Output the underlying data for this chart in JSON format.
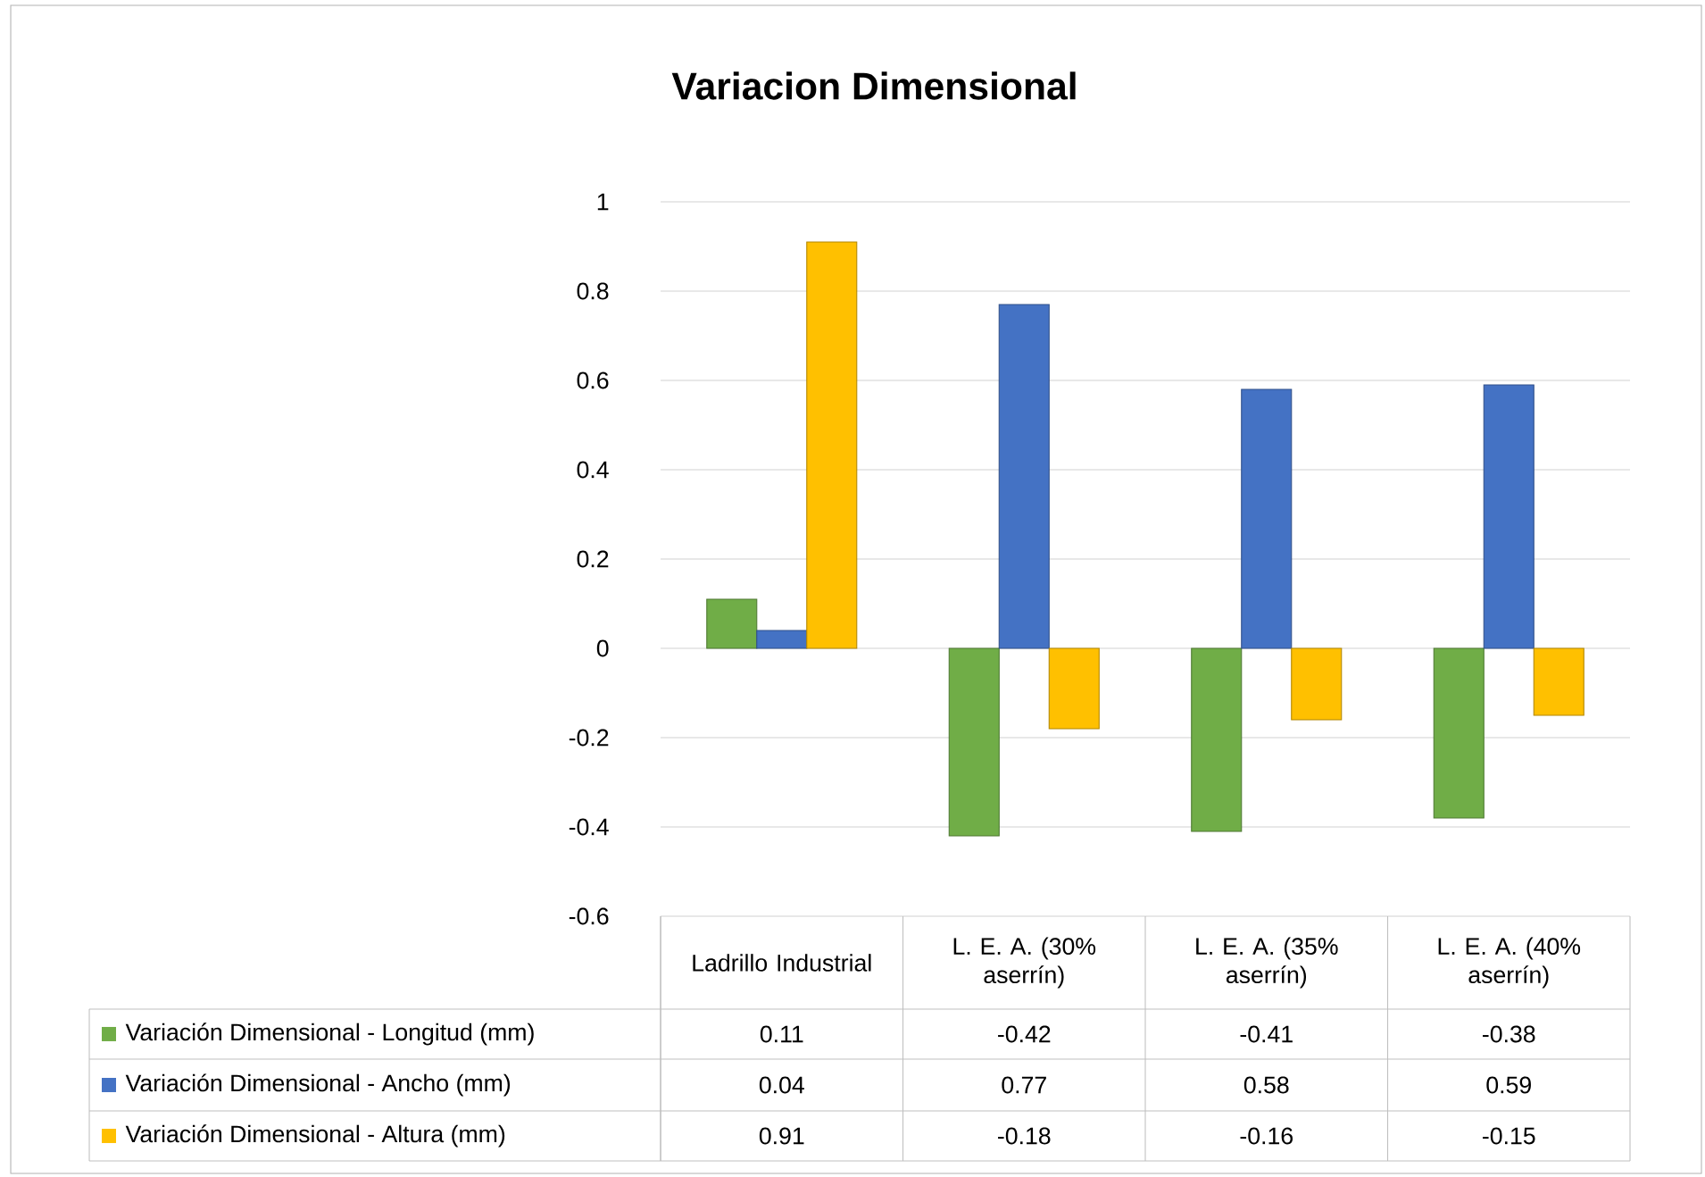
{
  "chart_data": {
    "type": "bar",
    "title": "Variacion Dimensional",
    "categories": [
      "Ladrillo Industrial",
      "L. E. A. (30% aserrín)",
      "L. E. A. (35% aserrín)",
      "L. E. A. (40% aserrín)"
    ],
    "series": [
      {
        "name": "Variación Dimensional - Longitud (mm)",
        "color": "#70ad47",
        "values": [
          0.11,
          -0.42,
          -0.41,
          -0.38
        ]
      },
      {
        "name": "Variación Dimensional - Ancho (mm)",
        "color": "#4472c4",
        "values": [
          0.04,
          0.77,
          0.58,
          0.59
        ]
      },
      {
        "name": "Variación Dimensional - Altura (mm)",
        "color": "#ffc000",
        "values": [
          0.91,
          -0.18,
          -0.16,
          -0.15
        ]
      }
    ],
    "ylim": [
      -0.6,
      1
    ],
    "yticks": [
      -0.6,
      -0.4,
      -0.2,
      0,
      0.2,
      0.4,
      0.6,
      0.8,
      1
    ],
    "grid": "y",
    "legend": "bottom",
    "data_labels": true
  }
}
